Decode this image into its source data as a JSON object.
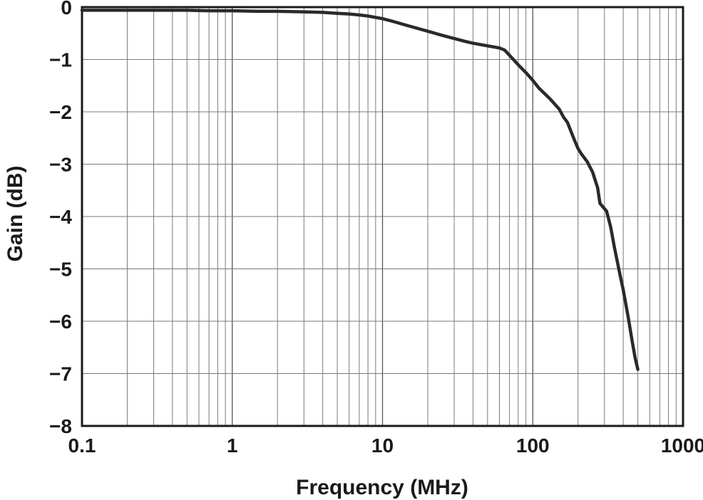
{
  "chart_data": {
    "type": "line",
    "title": "",
    "xlabel": "Frequency (MHz)",
    "ylabel": "Gain (dB)",
    "xscale": "log",
    "xlim": [
      0.1,
      1000
    ],
    "ylim": [
      -8,
      0
    ],
    "x_ticks": [
      0.1,
      1,
      10,
      100,
      1000
    ],
    "x_tick_labels": [
      "0.1",
      "1",
      "10",
      "100",
      "1000"
    ],
    "y_ticks": [
      0,
      -1,
      -2,
      -3,
      -4,
      -5,
      -6,
      -7,
      -8
    ],
    "y_tick_labels": [
      "0",
      "−1",
      "−2",
      "−3",
      "−4",
      "−5",
      "−6",
      "−7",
      "−8"
    ],
    "grid": true,
    "legend": "none",
    "line_color": "#2a2a2a",
    "grid_color": "#7a7a7a",
    "frame_color": "#1a1a1a",
    "line_width": 4.5,
    "series": [
      {
        "name": "Gain",
        "x": [
          0.1,
          0.15,
          0.2,
          0.3,
          0.5,
          0.7,
          1,
          1.5,
          2,
          3,
          4,
          5,
          6,
          7,
          8,
          10,
          12,
          15,
          20,
          25,
          30,
          35,
          40,
          50,
          60,
          65,
          70,
          80,
          90,
          100,
          110,
          130,
          150,
          160,
          170,
          190,
          200,
          210,
          230,
          250,
          270,
          280,
          300,
          310,
          330,
          350,
          380,
          400,
          430,
          460,
          480,
          500
        ],
        "y": [
          -0.06,
          -0.06,
          -0.06,
          -0.06,
          -0.06,
          -0.07,
          -0.07,
          -0.08,
          -0.08,
          -0.09,
          -0.1,
          -0.12,
          -0.13,
          -0.15,
          -0.17,
          -0.22,
          -0.28,
          -0.36,
          -0.46,
          -0.54,
          -0.6,
          -0.65,
          -0.69,
          -0.74,
          -0.78,
          -0.82,
          -0.92,
          -1.1,
          -1.25,
          -1.4,
          -1.55,
          -1.75,
          -1.95,
          -2.1,
          -2.2,
          -2.55,
          -2.7,
          -2.8,
          -2.95,
          -3.15,
          -3.45,
          -3.75,
          -3.85,
          -3.9,
          -4.2,
          -4.6,
          -5.1,
          -5.4,
          -5.9,
          -6.4,
          -6.7,
          -6.92
        ]
      }
    ]
  }
}
